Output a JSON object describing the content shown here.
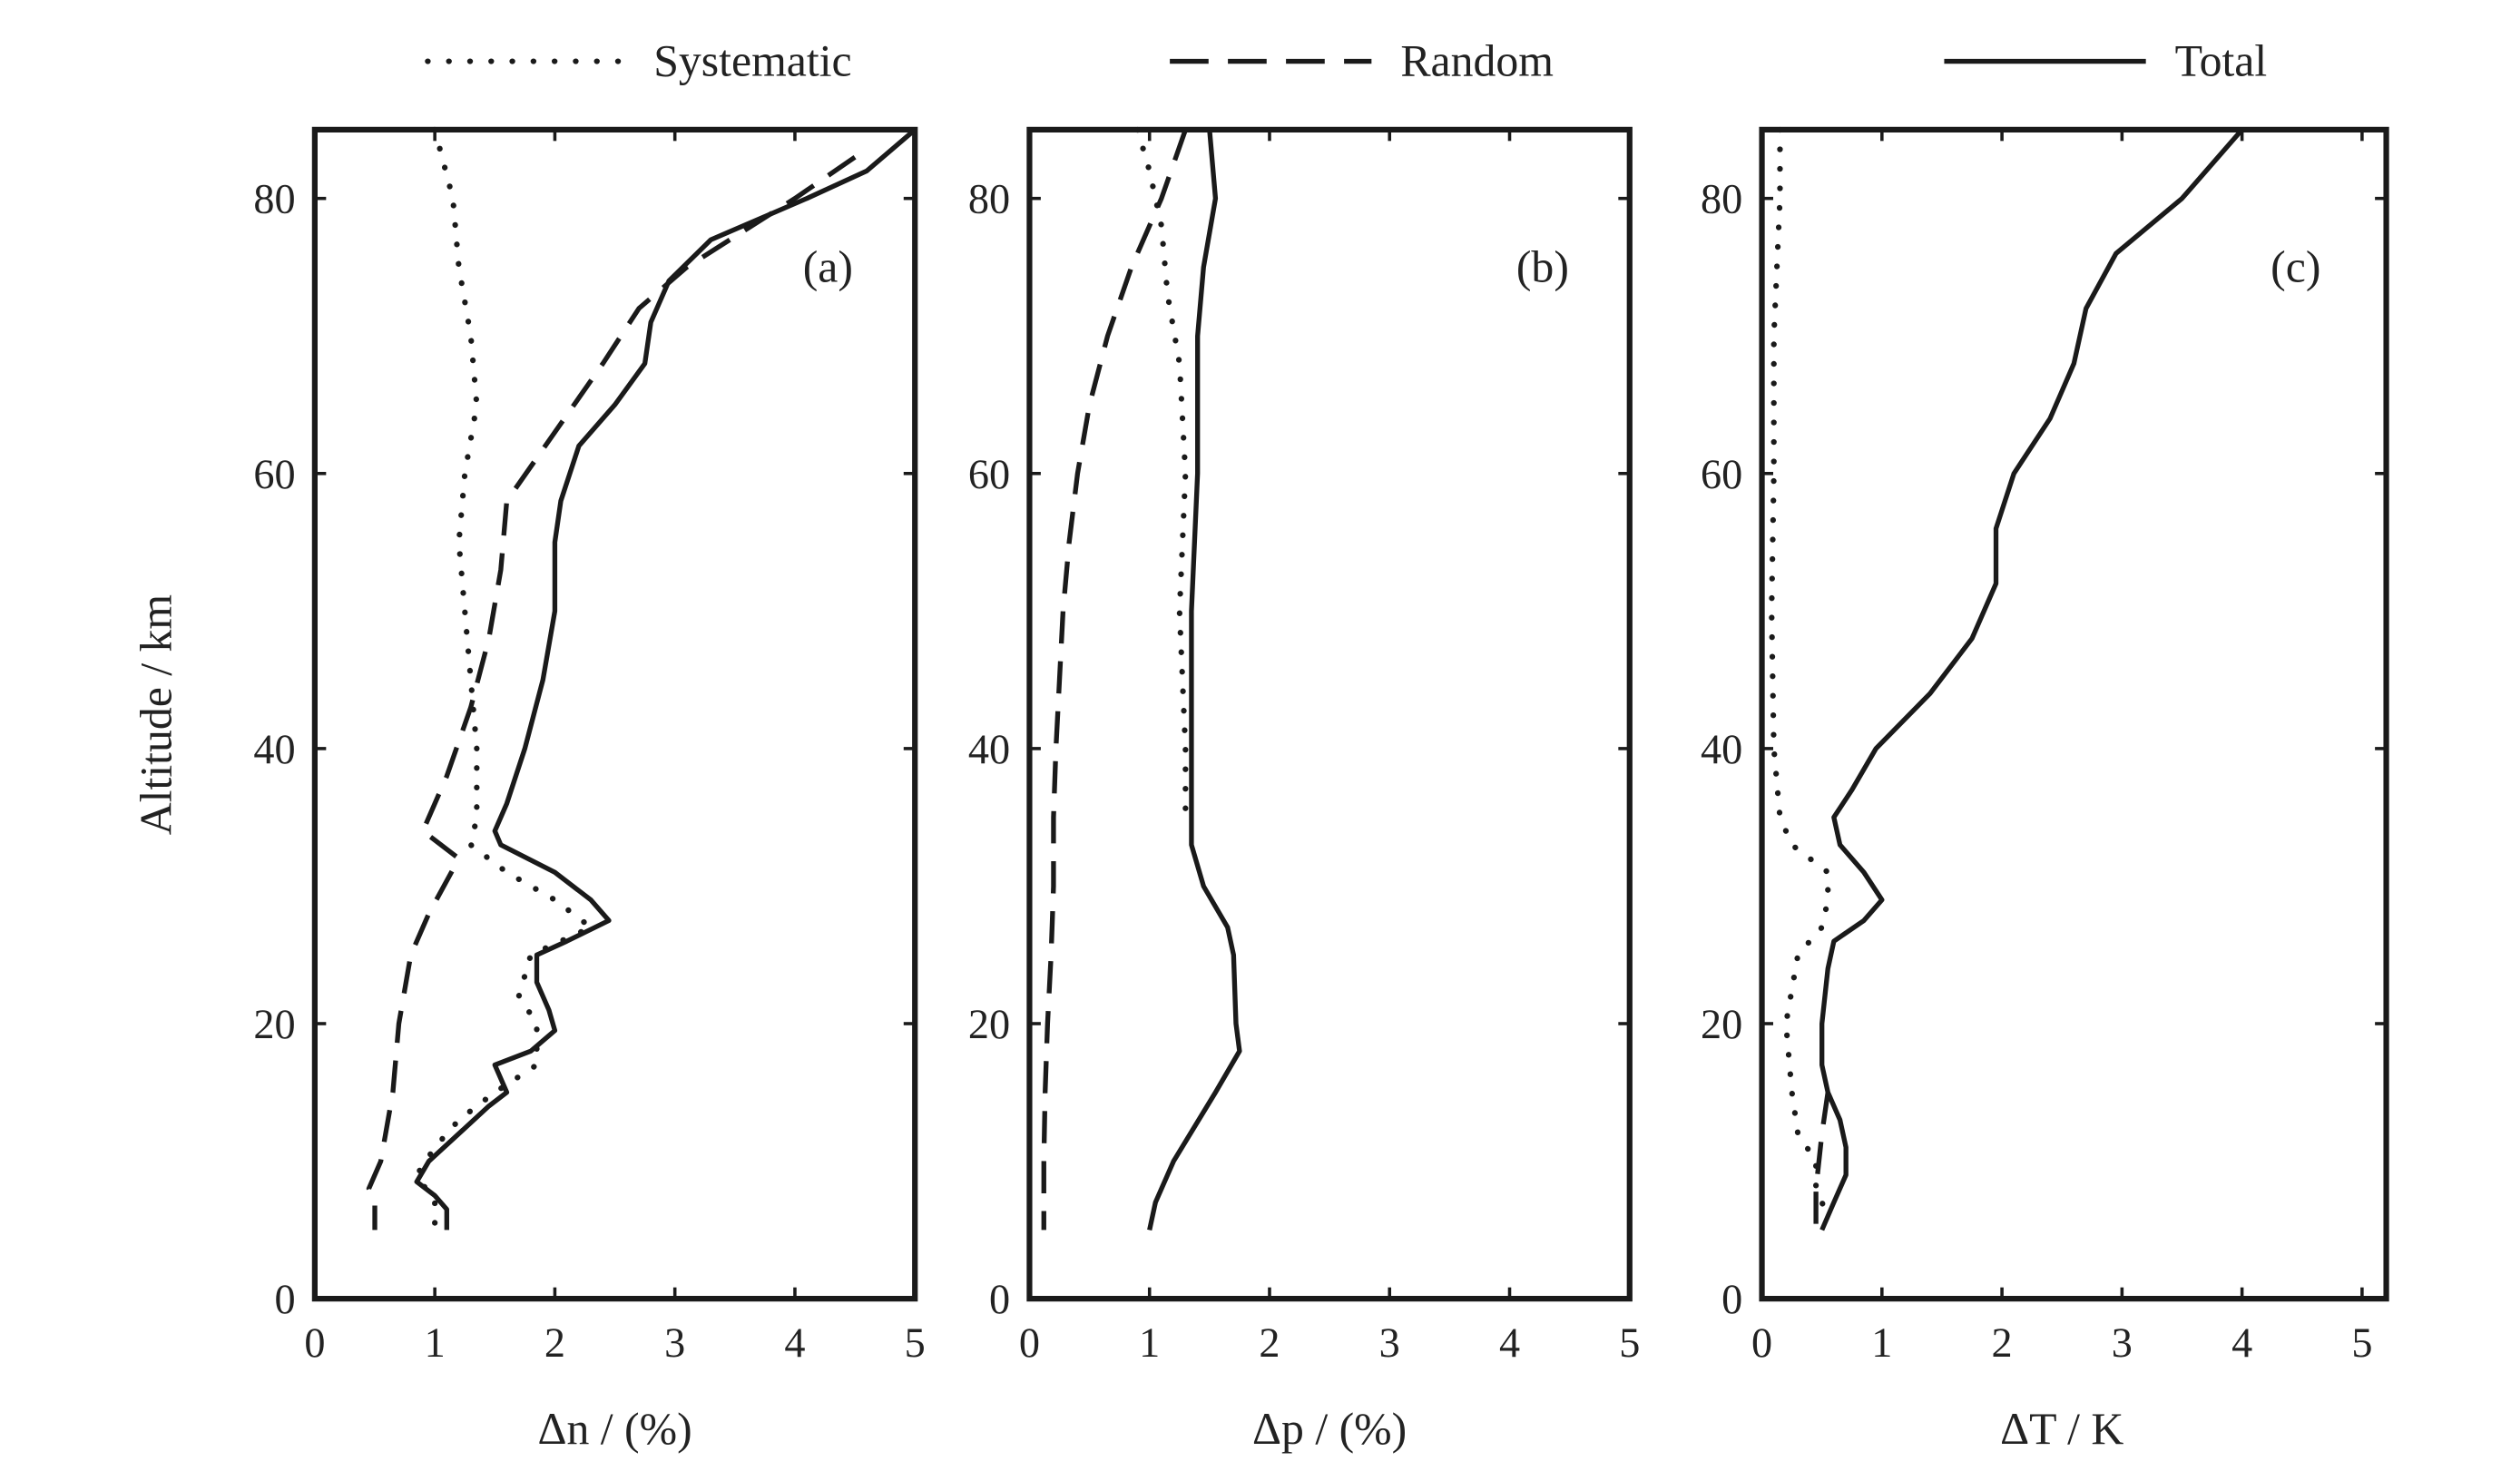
{
  "colors": {
    "line": "#1a1a1a",
    "background": "#ffffff"
  },
  "legend": [
    {
      "label": "Systematic",
      "style": "dotted"
    },
    {
      "label": "Random",
      "style": "dashed"
    },
    {
      "label": "Total",
      "style": "solid"
    }
  ],
  "ylabel": "Altitude / km",
  "chart_data": [
    {
      "type": "line",
      "panel_label": "(a)",
      "xlabel": "Δn / (%)",
      "ylabel": "Altitude / km",
      "xlim": [
        0,
        5
      ],
      "ylim": [
        0,
        85
      ],
      "xticks": [
        0,
        1,
        2,
        3,
        4,
        5
      ],
      "yticks": [
        0,
        20,
        40,
        60,
        80
      ],
      "series": [
        {
          "name": "Systematic",
          "style": "dotted",
          "points": [
            [
              1.0,
              85
            ],
            [
              1.15,
              80
            ],
            [
              1.2,
              75
            ],
            [
              1.3,
              70
            ],
            [
              1.35,
              65
            ],
            [
              1.25,
              60
            ],
            [
              1.2,
              55
            ],
            [
              1.25,
              50
            ],
            [
              1.3,
              45
            ],
            [
              1.35,
              40
            ],
            [
              1.35,
              35
            ],
            [
              1.3,
              33
            ],
            [
              1.6,
              31
            ],
            [
              2.0,
              29
            ],
            [
              2.3,
              27
            ],
            [
              1.8,
              25
            ],
            [
              1.7,
              22
            ],
            [
              1.85,
              20
            ],
            [
              1.85,
              17
            ],
            [
              1.5,
              15
            ],
            [
              1.2,
              13
            ],
            [
              1.0,
              11
            ],
            [
              0.85,
              9
            ],
            [
              1.0,
              7
            ],
            [
              1.0,
              5
            ]
          ]
        },
        {
          "name": "Random",
          "style": "dashed",
          "points": [
            [
              4.5,
              83
            ],
            [
              4.0,
              80
            ],
            [
              3.1,
              75
            ],
            [
              2.7,
              72
            ],
            [
              2.4,
              68
            ],
            [
              2.0,
              63
            ],
            [
              1.6,
              58
            ],
            [
              1.55,
              53
            ],
            [
              1.45,
              48
            ],
            [
              1.3,
              43
            ],
            [
              1.1,
              38
            ],
            [
              0.95,
              35
            ],
            [
              0.9,
              34
            ],
            [
              1.2,
              32
            ],
            [
              0.95,
              28
            ],
            [
              0.8,
              25
            ],
            [
              0.7,
              20
            ],
            [
              0.65,
              15
            ],
            [
              0.55,
              10
            ],
            [
              0.45,
              8
            ],
            [
              0.5,
              7
            ],
            [
              0.5,
              5
            ]
          ]
        },
        {
          "name": "Total",
          "style": "solid",
          "points": [
            [
              5.0,
              85
            ],
            [
              4.6,
              82
            ],
            [
              4.1,
              80
            ],
            [
              3.3,
              77
            ],
            [
              2.95,
              74
            ],
            [
              2.8,
              71
            ],
            [
              2.75,
              68
            ],
            [
              2.5,
              65
            ],
            [
              2.2,
              62
            ],
            [
              2.05,
              58
            ],
            [
              2.0,
              55
            ],
            [
              2.0,
              50
            ],
            [
              1.9,
              45
            ],
            [
              1.75,
              40
            ],
            [
              1.6,
              36
            ],
            [
              1.5,
              34
            ],
            [
              1.55,
              33
            ],
            [
              2.0,
              31
            ],
            [
              2.3,
              29
            ],
            [
              2.45,
              27.5
            ],
            [
              2.1,
              26
            ],
            [
              1.85,
              25
            ],
            [
              1.85,
              23
            ],
            [
              1.95,
              21
            ],
            [
              2.0,
              19.5
            ],
            [
              1.8,
              18
            ],
            [
              1.5,
              17
            ],
            [
              1.55,
              16
            ],
            [
              1.6,
              15
            ],
            [
              1.45,
              14
            ],
            [
              1.2,
              12
            ],
            [
              0.95,
              10
            ],
            [
              0.85,
              8.5
            ],
            [
              1.0,
              7.5
            ],
            [
              1.1,
              6.5
            ],
            [
              1.1,
              5
            ]
          ]
        }
      ]
    },
    {
      "type": "line",
      "panel_label": "(b)",
      "xlabel": "Δp / (%)",
      "ylabel": "",
      "xlim": [
        0,
        5
      ],
      "ylim": [
        0,
        85
      ],
      "xticks": [
        0,
        1,
        2,
        3,
        4,
        5
      ],
      "yticks": [
        0,
        20,
        40,
        60,
        80
      ],
      "series": [
        {
          "name": "Systematic",
          "style": "dotted",
          "points": [
            [
              0.9,
              85
            ],
            [
              1.0,
              82
            ],
            [
              1.1,
              78
            ],
            [
              1.15,
              73
            ],
            [
              1.25,
              68
            ],
            [
              1.3,
              60
            ],
            [
              1.25,
              50
            ],
            [
              1.3,
              40
            ],
            [
              1.3,
              35
            ]
          ]
        },
        {
          "name": "Random",
          "style": "dashed",
          "points": [
            [
              1.3,
              85
            ],
            [
              1.1,
              80
            ],
            [
              0.85,
              75
            ],
            [
              0.65,
              70
            ],
            [
              0.5,
              65
            ],
            [
              0.4,
              60
            ],
            [
              0.33,
              55
            ],
            [
              0.28,
              50
            ],
            [
              0.25,
              45
            ],
            [
              0.22,
              40
            ],
            [
              0.2,
              35
            ],
            [
              0.2,
              30
            ],
            [
              0.18,
              25
            ],
            [
              0.15,
              20
            ],
            [
              0.13,
              15
            ],
            [
              0.12,
              10
            ],
            [
              0.12,
              5
            ]
          ]
        },
        {
          "name": "Total",
          "style": "solid",
          "points": [
            [
              1.5,
              85
            ],
            [
              1.55,
              80
            ],
            [
              1.45,
              75
            ],
            [
              1.4,
              70
            ],
            [
              1.4,
              60
            ],
            [
              1.35,
              50
            ],
            [
              1.35,
              40
            ],
            [
              1.35,
              35
            ],
            [
              1.35,
              33
            ],
            [
              1.45,
              30
            ],
            [
              1.65,
              27
            ],
            [
              1.7,
              25
            ],
            [
              1.72,
              20
            ],
            [
              1.75,
              18
            ],
            [
              1.55,
              15
            ],
            [
              1.2,
              10
            ],
            [
              1.05,
              7
            ],
            [
              1.0,
              5
            ]
          ]
        }
      ]
    },
    {
      "type": "line",
      "panel_label": "(c)",
      "xlabel": "ΔT / K",
      "ylabel": "",
      "xlim": [
        0,
        5.2
      ],
      "ylim": [
        0,
        85
      ],
      "xticks": [
        0,
        1,
        2,
        3,
        4,
        5
      ],
      "yticks": [
        0,
        20,
        40,
        60,
        80
      ],
      "series": [
        {
          "name": "Systematic",
          "style": "dotted",
          "points": [
            [
              0.15,
              85
            ],
            [
              0.15,
              80
            ],
            [
              0.1,
              70
            ],
            [
              0.1,
              60
            ],
            [
              0.08,
              50
            ],
            [
              0.1,
              40
            ],
            [
              0.15,
              35
            ],
            [
              0.25,
              33
            ],
            [
              0.55,
              31
            ],
            [
              0.55,
              29
            ],
            [
              0.5,
              27
            ],
            [
              0.3,
              25
            ],
            [
              0.2,
              20
            ],
            [
              0.25,
              15
            ],
            [
              0.3,
              12
            ],
            [
              0.45,
              10
            ],
            [
              0.45,
              8
            ],
            [
              0.55,
              6
            ]
          ]
        },
        {
          "name": "Random",
          "style": "dashed",
          "points": [
            [
              0.55,
              15
            ],
            [
              0.5,
              12
            ],
            [
              0.45,
              8
            ],
            [
              0.45,
              5
            ]
          ]
        },
        {
          "name": "Total",
          "style": "solid",
          "points": [
            [
              4.0,
              85
            ],
            [
              3.5,
              80
            ],
            [
              2.95,
              76
            ],
            [
              2.7,
              72
            ],
            [
              2.6,
              68
            ],
            [
              2.4,
              64
            ],
            [
              2.1,
              60
            ],
            [
              1.95,
              56
            ],
            [
              1.95,
              52
            ],
            [
              1.75,
              48
            ],
            [
              1.4,
              44
            ],
            [
              0.95,
              40
            ],
            [
              0.75,
              37
            ],
            [
              0.6,
              35
            ],
            [
              0.65,
              33
            ],
            [
              0.85,
              31
            ],
            [
              1.0,
              29
            ],
            [
              0.85,
              27.5
            ],
            [
              0.6,
              26
            ],
            [
              0.55,
              24
            ],
            [
              0.5,
              20
            ],
            [
              0.5,
              17
            ],
            [
              0.55,
              15
            ],
            [
              0.65,
              13
            ],
            [
              0.7,
              11
            ],
            [
              0.7,
              9
            ],
            [
              0.6,
              7
            ],
            [
              0.5,
              5
            ]
          ]
        }
      ]
    }
  ]
}
